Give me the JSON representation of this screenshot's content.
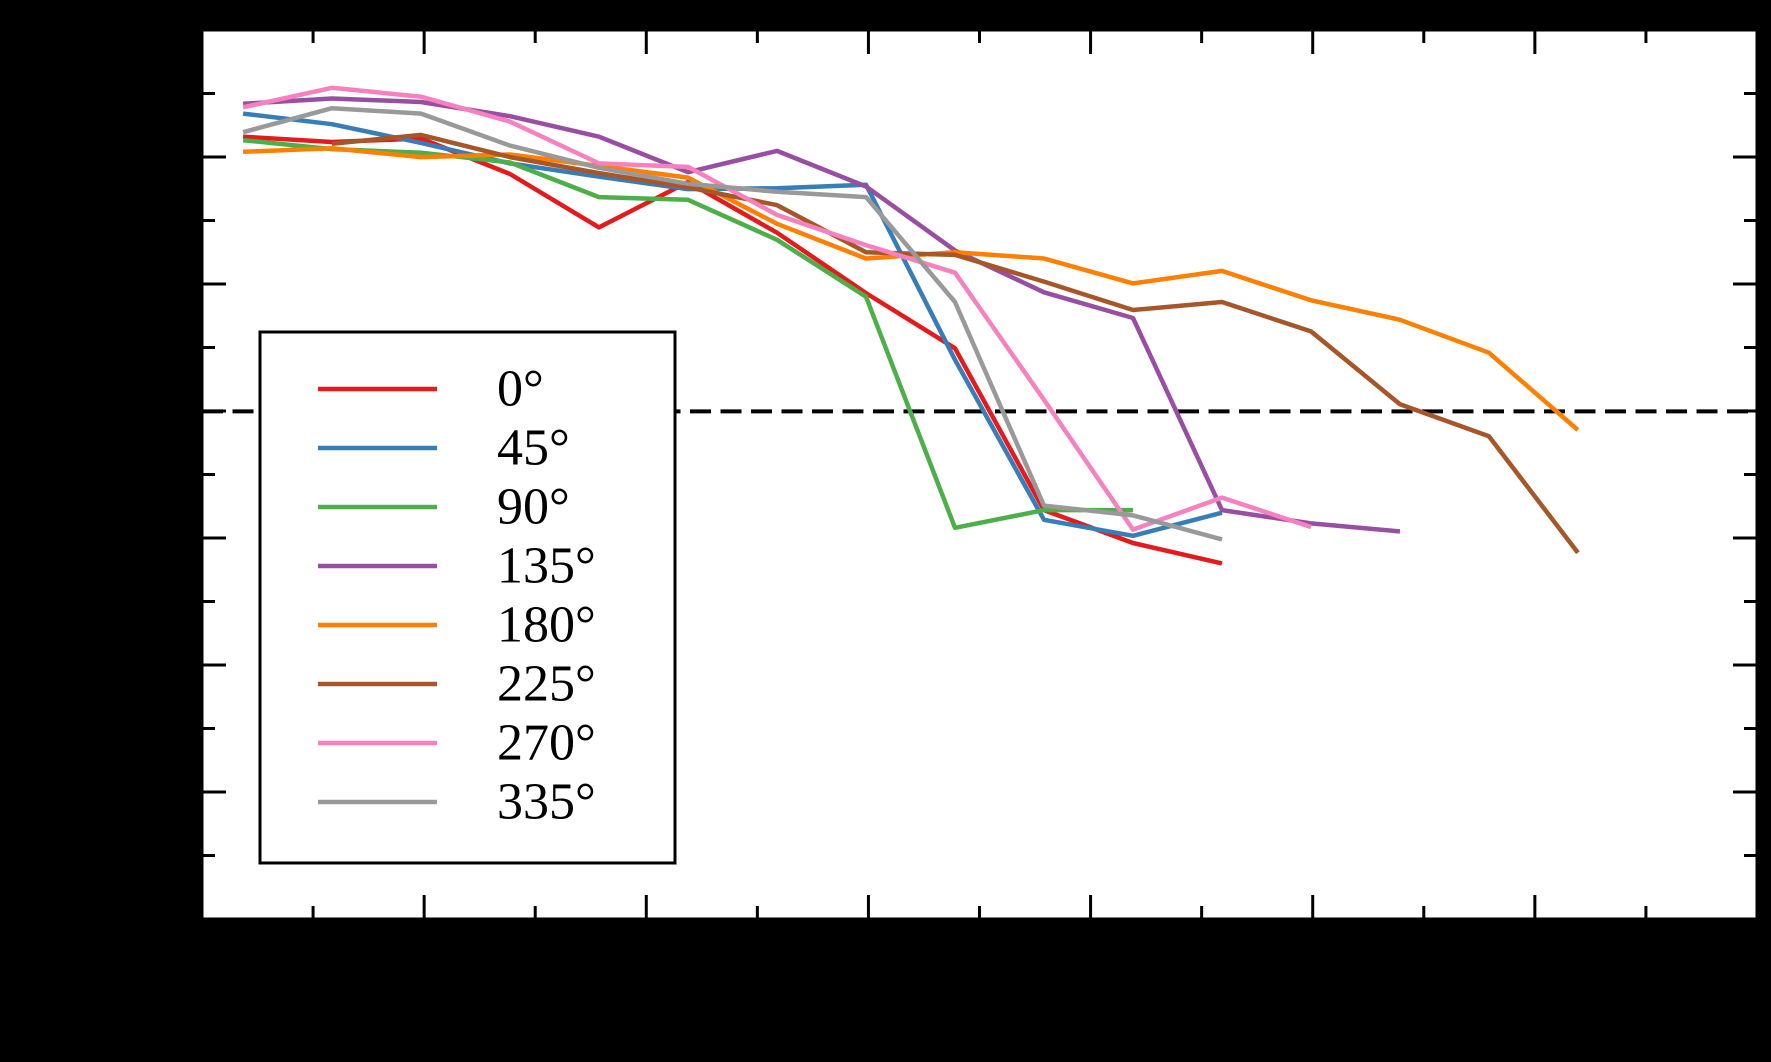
{
  "colors": {
    "figure_background": "#000000",
    "plot_background": "#ffffff",
    "axis_color": "#000000"
  },
  "chart_data": {
    "type": "line",
    "title": "",
    "xlabel": "",
    "ylabel": "",
    "notes": "Figure margins are black and axis tick labels / axis titles are not visible (black text on black background). Series values are given as fractions of the axis ranges: x_frac 0 = left spine, 1 = right spine; y_frac 0 = bottom spine, 1 = top spine.",
    "x_axis": {
      "tick_labels_visible": false,
      "major_divisions": 7,
      "minor_ticks_between_majors": true,
      "tick_direction": "in",
      "ticks_on_top_and_bottom": true
    },
    "y_axis": {
      "tick_labels_visible": false,
      "major_divisions": 7,
      "minor_ticks_between_majors": true,
      "tick_direction": "in",
      "ticks_on_left_and_right": true
    },
    "threshold_line": {
      "style": "dashed",
      "color": "#000000",
      "y_frac": 0.571
    },
    "x_points": {
      "first_frac": 0.0264,
      "step_frac": 0.05723,
      "count": 16,
      "note": "All series are sampled on the same evenly spaced x grid; series end at different indices."
    },
    "series": [
      {
        "name": "0°",
        "color": "#e41a1c",
        "start_index": 0,
        "y_frac": [
          0.88,
          0.874,
          0.878,
          0.838,
          0.778,
          0.829,
          0.772,
          0.704,
          0.642,
          0.46,
          0.423,
          0.4
        ]
      },
      {
        "name": "45°",
        "color": "#377eb8",
        "start_index": 0,
        "y_frac": [
          0.906,
          0.894,
          0.873,
          0.85,
          0.835,
          0.821,
          0.822,
          0.826,
          0.629,
          0.449,
          0.431,
          0.457
        ]
      },
      {
        "name": "90°",
        "color": "#4daf4a",
        "start_index": 0,
        "y_frac": [
          0.876,
          0.866,
          0.862,
          0.851,
          0.812,
          0.809,
          0.764,
          0.7,
          0.44,
          0.46,
          0.46
        ]
      },
      {
        "name": "135°",
        "color": "#984ea3",
        "start_index": 0,
        "y_frac": [
          0.917,
          0.923,
          0.919,
          0.903,
          0.88,
          0.84,
          0.864,
          0.824,
          0.752,
          0.705,
          0.676,
          0.46,
          0.445,
          0.436
        ]
      },
      {
        "name": "180°",
        "color": "#ff7f00",
        "start_index": 0,
        "y_frac": [
          0.863,
          0.867,
          0.857,
          0.86,
          0.847,
          0.834,
          0.782,
          0.743,
          0.75,
          0.743,
          0.715,
          0.729,
          0.696,
          0.674,
          0.637,
          0.55
        ]
      },
      {
        "name": "225°",
        "color": "#a65628",
        "start_index": 1,
        "y_frac": [
          0.872,
          0.882,
          0.857,
          0.839,
          0.823,
          0.803,
          0.75,
          0.747,
          0.717,
          0.685,
          0.694,
          0.661,
          0.579,
          0.543,
          0.412
        ]
      },
      {
        "name": "270°",
        "color": "#f781bf",
        "start_index": 0,
        "y_frac": [
          0.913,
          0.935,
          0.925,
          0.897,
          0.85,
          0.846,
          0.792,
          0.758,
          0.727,
          0.584,
          0.438,
          0.474,
          0.441
        ]
      },
      {
        "name": "335°",
        "color": "#999999",
        "start_index": 0,
        "y_frac": [
          0.885,
          0.912,
          0.906,
          0.87,
          0.845,
          0.827,
          0.818,
          0.812,
          0.694,
          0.465,
          0.454,
          0.427
        ]
      }
    ],
    "legend": {
      "position": "center-left",
      "entries": [
        "0°",
        "45°",
        "90°",
        "135°",
        "180°",
        "225°",
        "270°",
        "335°"
      ]
    }
  }
}
